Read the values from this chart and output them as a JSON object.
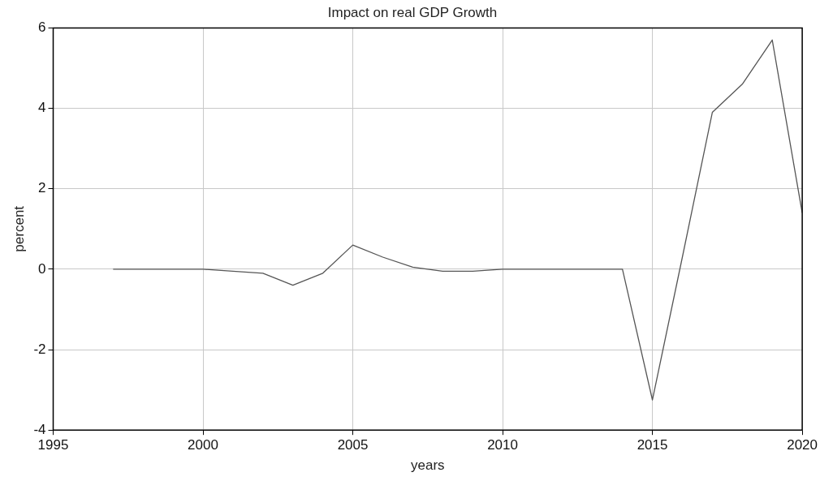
{
  "chart_data": {
    "type": "line",
    "title": "Impact on real GDP Growth",
    "xlabel": "years",
    "ylabel": "percent",
    "x": [
      1997,
      1998,
      1999,
      2000,
      2001,
      2002,
      2003,
      2004,
      2005,
      2006,
      2007,
      2008,
      2009,
      2010,
      2011,
      2012,
      2013,
      2014,
      2015,
      2016,
      2017,
      2018,
      2019,
      2020
    ],
    "series": [
      {
        "color": "#555555",
        "values": [
          0,
          0,
          0,
          0,
          -0.05,
          -0.1,
          -0.4,
          -0.1,
          0.6,
          0.3,
          0.05,
          -0.05,
          -0.05,
          0,
          0,
          0,
          0,
          0,
          -3.25,
          0.3,
          3.9,
          4.6,
          5.7,
          1.4
        ]
      }
    ],
    "xlim": [
      1995,
      2020
    ],
    "xticks": [
      1995,
      2000,
      2005,
      2010,
      2015,
      2020
    ],
    "ylim": [
      -4,
      6
    ],
    "yticks": [
      -4,
      -2,
      0,
      2,
      4,
      6
    ],
    "grid": true,
    "legend": false,
    "marker": "none",
    "line_style": "solid"
  }
}
